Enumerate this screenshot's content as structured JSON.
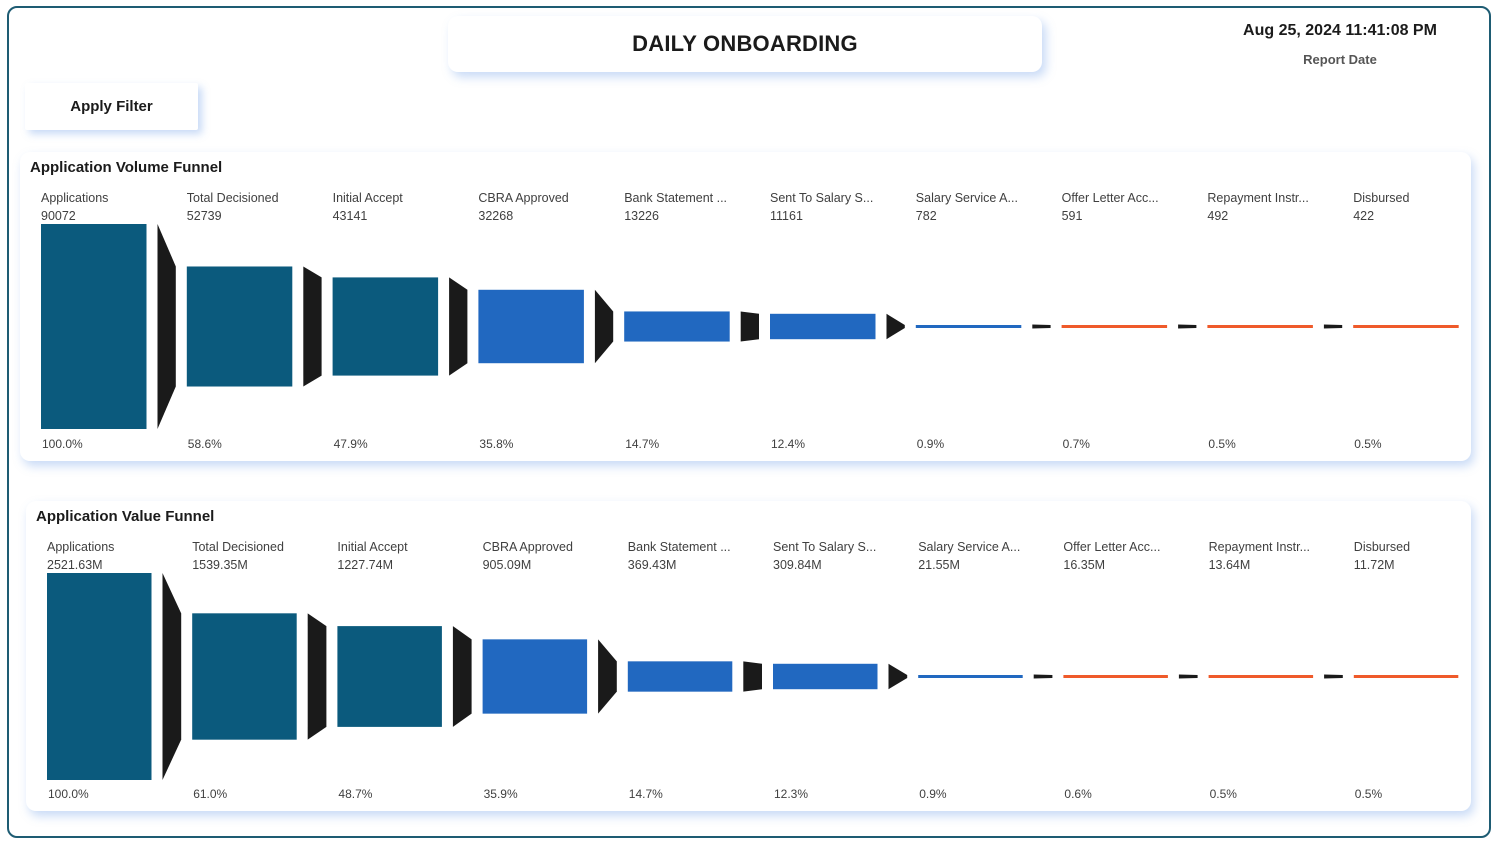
{
  "header": {
    "title": "DAILY ONBOARDING",
    "datetime": "Aug 25, 2024 11:41:08 PM",
    "date_label": "Report Date"
  },
  "filter": {
    "label": "Apply Filter"
  },
  "colors": {
    "dark_teal": "#0b5a7d",
    "blue": "#2168c0",
    "orange": "#ef5a2a",
    "connector": "#1a1a1a"
  },
  "chart_data": [
    {
      "type": "funnel",
      "title": "Application Volume Funnel",
      "stages": [
        {
          "label": "Applications",
          "value": 90072,
          "value_label": "90072",
          "pct": "100.0%",
          "color": "dark_teal"
        },
        {
          "label": "Total Decisioned",
          "value": 52739,
          "value_label": "52739",
          "pct": "58.6%",
          "color": "dark_teal"
        },
        {
          "label": "Initial Accept",
          "value": 43141,
          "value_label": "43141",
          "pct": "47.9%",
          "color": "dark_teal"
        },
        {
          "label": "CBRA Approved",
          "value": 32268,
          "value_label": "32268",
          "pct": "35.8%",
          "color": "blue"
        },
        {
          "label": "Bank Statement ...",
          "value": 13226,
          "value_label": "13226",
          "pct": "14.7%",
          "color": "blue"
        },
        {
          "label": "Sent To Salary S...",
          "value": 11161,
          "value_label": "11161",
          "pct": "12.4%",
          "color": "blue"
        },
        {
          "label": "Salary Service A...",
          "value": 782,
          "value_label": "782",
          "pct": "0.9%",
          "color": "blue"
        },
        {
          "label": "Offer Letter Acc...",
          "value": 591,
          "value_label": "591",
          "pct": "0.7%",
          "color": "orange"
        },
        {
          "label": "Repayment Instr...",
          "value": 492,
          "value_label": "492",
          "pct": "0.5%",
          "color": "orange"
        },
        {
          "label": "Disbursed",
          "value": 422,
          "value_label": "422",
          "pct": "0.5%",
          "color": "orange"
        }
      ]
    },
    {
      "type": "funnel",
      "title": "Application Value Funnel",
      "stages": [
        {
          "label": "Applications",
          "value": 2521.63,
          "value_label": "2521.63M",
          "pct": "100.0%",
          "color": "dark_teal"
        },
        {
          "label": "Total Decisioned",
          "value": 1539.35,
          "value_label": "1539.35M",
          "pct": "61.0%",
          "color": "dark_teal"
        },
        {
          "label": "Initial Accept",
          "value": 1227.74,
          "value_label": "1227.74M",
          "pct": "48.7%",
          "color": "dark_teal"
        },
        {
          "label": "CBRA Approved",
          "value": 905.09,
          "value_label": "905.09M",
          "pct": "35.9%",
          "color": "blue"
        },
        {
          "label": "Bank Statement ...",
          "value": 369.43,
          "value_label": "369.43M",
          "pct": "14.7%",
          "color": "blue"
        },
        {
          "label": "Sent To Salary S...",
          "value": 309.84,
          "value_label": "309.84M",
          "pct": "12.3%",
          "color": "blue"
        },
        {
          "label": "Salary Service A...",
          "value": 21.55,
          "value_label": "21.55M",
          "pct": "0.9%",
          "color": "blue"
        },
        {
          "label": "Offer Letter Acc...",
          "value": 16.35,
          "value_label": "16.35M",
          "pct": "0.6%",
          "color": "orange"
        },
        {
          "label": "Repayment Instr...",
          "value": 13.64,
          "value_label": "13.64M",
          "pct": "0.5%",
          "color": "orange"
        },
        {
          "label": "Disbursed",
          "value": 11.72,
          "value_label": "11.72M",
          "pct": "0.5%",
          "color": "orange"
        }
      ]
    }
  ]
}
